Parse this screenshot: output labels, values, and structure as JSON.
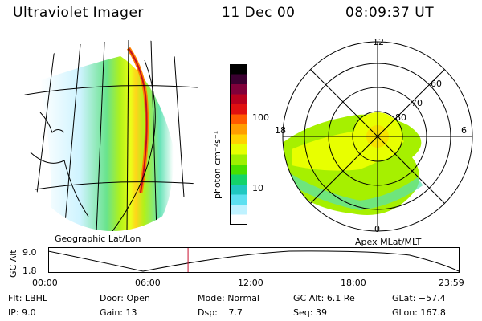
{
  "header": {
    "instrument": "Ultraviolet Imager",
    "date": "11 Dec 00",
    "time": "08:09:37 UT"
  },
  "geo_panel": {
    "caption": "Geographic Lat/Lon"
  },
  "polar_panel": {
    "caption": "Apex MLat/MLT",
    "mlt_labels": [
      "12",
      "18",
      "6",
      "0"
    ],
    "mlat_labels": [
      "60",
      "70",
      "80"
    ]
  },
  "colorbar": {
    "label": "photon cm⁻²s⁻¹",
    "tick_labels": [
      "100",
      "10"
    ],
    "colors": [
      "#000000",
      "#3a0030",
      "#80003a",
      "#b8001e",
      "#e01010",
      "#ff5a00",
      "#ff9d00",
      "#ffd200",
      "#e6ff00",
      "#9df000",
      "#48e000",
      "#14d36a",
      "#20c8c0",
      "#5de0f0",
      "#bff2ff",
      "#ffffff"
    ]
  },
  "alt_plot": {
    "ylabel": "GC Alt",
    "y_ticks": [
      "9.0",
      "1.8"
    ],
    "x_ticks": [
      "00:00",
      "06:00",
      "12:00",
      "18:00",
      "23:59"
    ],
    "marker_fraction": 0.34
  },
  "info": {
    "flt_label": "Flt:",
    "flt_value": "LBHL",
    "door_label": "Door:",
    "door_value": "Open",
    "mode_label": "Mode:",
    "mode_value": "Normal",
    "gcalt_label": "GC Alt:",
    "gcalt_value": "6.1 Re",
    "glat_label": "GLat:",
    "glat_value": "−57.4",
    "ip_label": "IP:",
    "ip_value": "9.0",
    "gain_label": "Gain:",
    "gain_value": "13",
    "dsp_label": "Dsp:",
    "dsp_value": "7.7",
    "seq_label": "Seq:",
    "seq_value": "39",
    "glon_label": "GLon:",
    "glon_value": "167.8"
  }
}
